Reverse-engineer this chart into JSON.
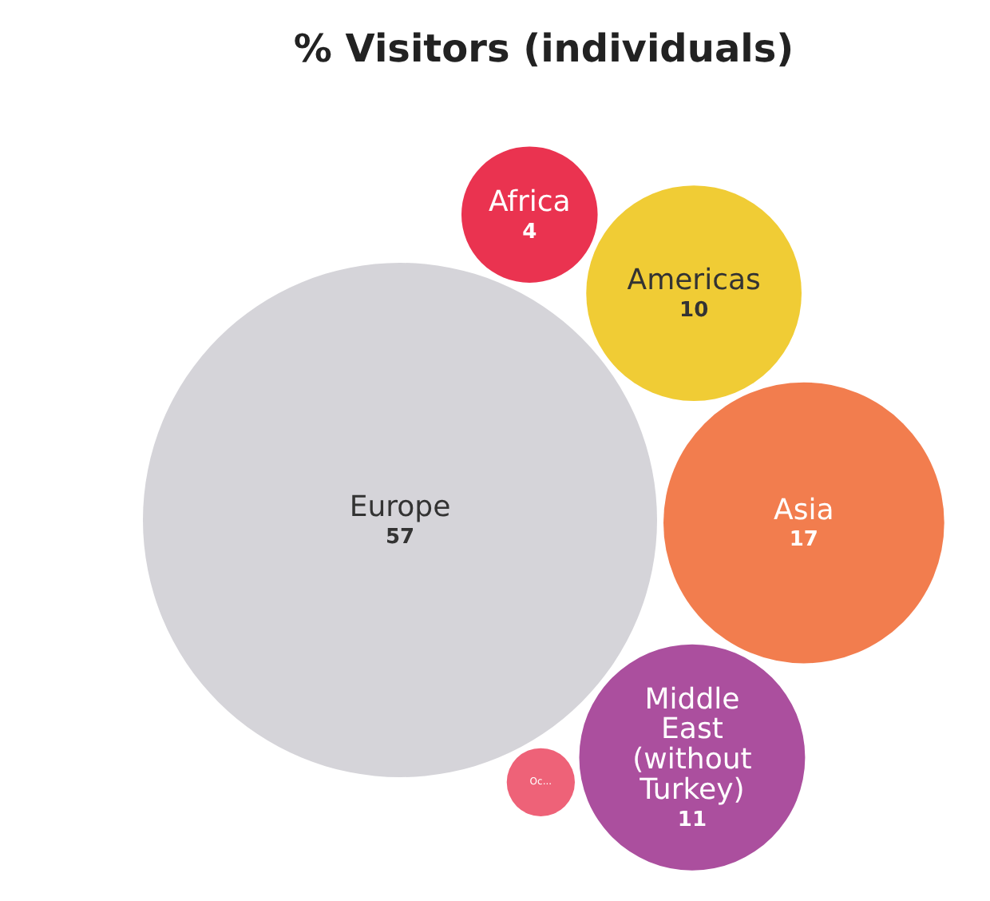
{
  "chart_data": {
    "type": "other",
    "title": "% Visitors (individuals)",
    "categories": [
      "Africa",
      "Americas",
      "Europe",
      "Asia",
      "Middle East (without Turkey)",
      "Oc..."
    ],
    "values": [
      4,
      10,
      57,
      17,
      11,
      null
    ],
    "value_labels": [
      "4",
      "10",
      "57",
      "17",
      "11",
      null
    ],
    "colors": [
      "#ea3350",
      "#f0cc35",
      "#d5d4d9",
      "#f27d4e",
      "#ab4f9e",
      "#ee6278"
    ]
  }
}
